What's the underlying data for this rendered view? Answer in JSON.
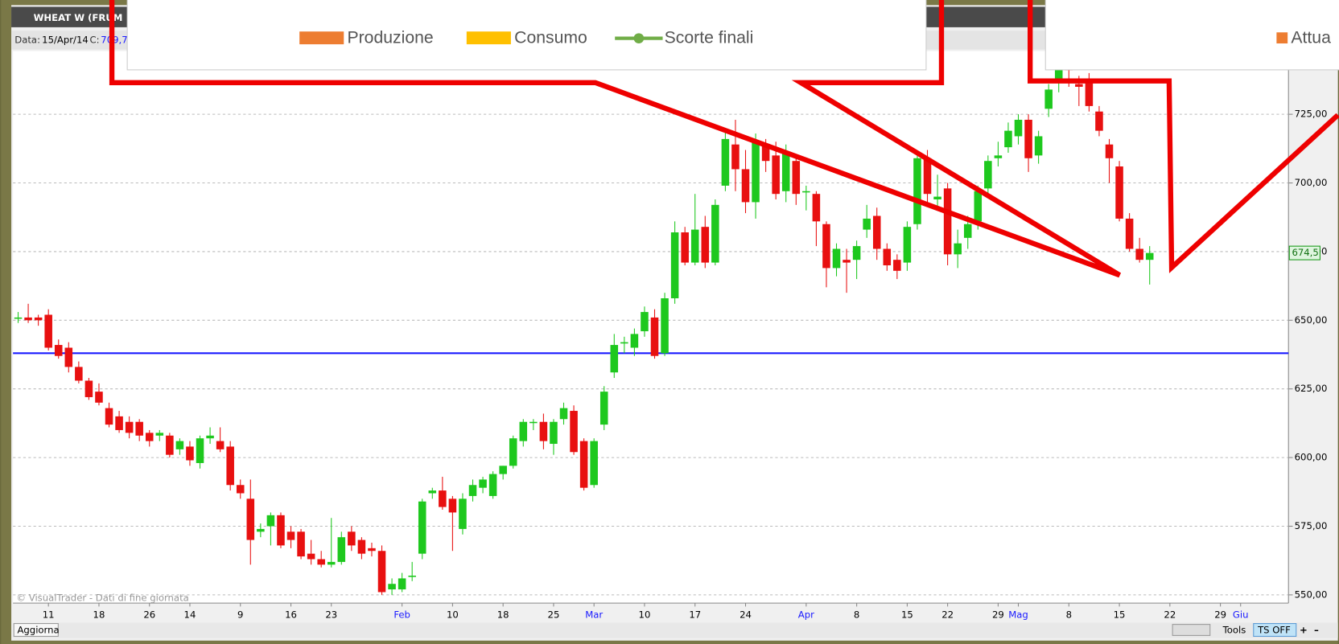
{
  "window": {
    "title": "WHEAT W (FRUM",
    "info": {
      "date_label": "Data:",
      "date": "15/Apr/14",
      "close_label": "C:",
      "close": "709,7"
    }
  },
  "legend_popup": {
    "items": [
      "Produzione",
      "Consumo",
      "Scorte finali"
    ],
    "right_item": "Attua"
  },
  "footer": {
    "update": "Aggiorna",
    "tools": "Tools",
    "ts": "TS OFF",
    "plus": "+",
    "minus": "–",
    "copyright": "© VisualTrader - Dati di fine giornata"
  },
  "chart_data": {
    "type": "candlestick",
    "up_color": "#1ec81e",
    "down_color": "#e81010",
    "grid": true,
    "ylim": [
      547,
      748
    ],
    "yticks": [
      {
        "value": 550,
        "label": "550,00"
      },
      {
        "value": 575,
        "label": "575,00"
      },
      {
        "value": 600,
        "label": "600,00"
      },
      {
        "value": 625,
        "label": "625,00"
      },
      {
        "value": 650,
        "label": "650,00"
      },
      {
        "value": 675,
        "label": "675,00"
      },
      {
        "value": 700,
        "label": "700,00"
      },
      {
        "value": 725,
        "label": "725,00"
      }
    ],
    "hline": {
      "value": 638,
      "color": "#1a1aff"
    },
    "last_price": {
      "value": 674.5,
      "label": "674,5"
    },
    "categories": [
      null,
      null,
      null,
      "11",
      null,
      null,
      null,
      null,
      "18",
      null,
      null,
      null,
      null,
      "26",
      null,
      null,
      null,
      "14",
      null,
      null,
      null,
      null,
      "9",
      null,
      null,
      null,
      null,
      "16",
      null,
      null,
      null,
      "23",
      null,
      null,
      null,
      null,
      null,
      null,
      "Feb",
      null,
      null,
      null,
      null,
      "10",
      null,
      null,
      null,
      null,
      "18",
      null,
      null,
      null,
      null,
      "25",
      null,
      null,
      null,
      "Mar",
      null,
      null,
      null,
      null,
      "10",
      null,
      null,
      null,
      null,
      "17",
      null,
      null,
      null,
      null,
      "24",
      null,
      null,
      null,
      null,
      null,
      "Apr",
      null,
      null,
      null,
      null,
      "8",
      null,
      null,
      null,
      null,
      "15",
      null,
      null,
      null,
      "22",
      null,
      null,
      null,
      null,
      "29",
      null,
      "Mag",
      null,
      null,
      null,
      null,
      "8",
      null,
      null,
      null,
      null,
      "15",
      null,
      null,
      null,
      null,
      "22",
      null,
      null,
      null,
      null,
      "29",
      null,
      "Giu",
      null
    ],
    "ohlc": [
      [
        651,
        653,
        649,
        651
      ],
      [
        651,
        656,
        649,
        650
      ],
      [
        651,
        652,
        648,
        650
      ],
      [
        652,
        654,
        639,
        640
      ],
      [
        641,
        643,
        636,
        637
      ],
      [
        640,
        642,
        631,
        633
      ],
      [
        633,
        635,
        627,
        628
      ],
      [
        628,
        629,
        621,
        622
      ],
      [
        624,
        627,
        619,
        620
      ],
      [
        618,
        620,
        611,
        612
      ],
      [
        615,
        617,
        609,
        610
      ],
      [
        613,
        615,
        607,
        609
      ],
      [
        613,
        614,
        606,
        608
      ],
      [
        609,
        610,
        604,
        606
      ],
      [
        608,
        610,
        606,
        609
      ],
      [
        608,
        609,
        600,
        601
      ],
      [
        603,
        607,
        601,
        606
      ],
      [
        604,
        606,
        597,
        599
      ],
      [
        598,
        608,
        596,
        607
      ],
      [
        607,
        611,
        605,
        608
      ],
      [
        606,
        611,
        602,
        603
      ],
      [
        604,
        606,
        588,
        590
      ],
      [
        590,
        592,
        585,
        587
      ],
      [
        585,
        592,
        561,
        570
      ],
      [
        573,
        576,
        571,
        574
      ],
      [
        575,
        580,
        568,
        579
      ],
      [
        579,
        580,
        567,
        568
      ],
      [
        573,
        575,
        567,
        570
      ],
      [
        573,
        574,
        563,
        564
      ],
      [
        565,
        570,
        561,
        563
      ],
      [
        563,
        566,
        560,
        561
      ],
      [
        561,
        578,
        560,
        562
      ],
      [
        562,
        573,
        561,
        571
      ],
      [
        573,
        575,
        566,
        568
      ],
      [
        570,
        571,
        563,
        565
      ],
      [
        567,
        569,
        564,
        566
      ],
      [
        566,
        568,
        550,
        551
      ],
      [
        552,
        556,
        550,
        554
      ],
      [
        552,
        558,
        551,
        556
      ],
      [
        557,
        562,
        555,
        557
      ],
      [
        565,
        585,
        563,
        584
      ],
      [
        587,
        589,
        585,
        588
      ],
      [
        588,
        593,
        581,
        582
      ],
      [
        585,
        586,
        566,
        580
      ],
      [
        574,
        587,
        572,
        585
      ],
      [
        586,
        592,
        584,
        590
      ],
      [
        589,
        593,
        587,
        592
      ],
      [
        586,
        595,
        585,
        594
      ],
      [
        594,
        597,
        592,
        597
      ],
      [
        597,
        608,
        596,
        607
      ],
      [
        606,
        614,
        604,
        613
      ],
      [
        613,
        614,
        610,
        613
      ],
      [
        613,
        616,
        603,
        606
      ],
      [
        605,
        614,
        601,
        613
      ],
      [
        614,
        620,
        612,
        618
      ],
      [
        617,
        619,
        601,
        602
      ],
      [
        606,
        607,
        588,
        589
      ],
      [
        590,
        607,
        589,
        606
      ],
      [
        612,
        626,
        610,
        624
      ],
      [
        631,
        645,
        629,
        641
      ],
      [
        642,
        644,
        638,
        642
      ],
      [
        640,
        647,
        637,
        645
      ],
      [
        646,
        655,
        644,
        653
      ],
      [
        651,
        654,
        636,
        637
      ],
      [
        638,
        660,
        637,
        658
      ],
      [
        658,
        686,
        656,
        682
      ],
      [
        682,
        684,
        670,
        671
      ],
      [
        671,
        696,
        670,
        683
      ],
      [
        684,
        688,
        669,
        671
      ],
      [
        671,
        694,
        670,
        692
      ],
      [
        699,
        719,
        697,
        716
      ],
      [
        714,
        723,
        697,
        705
      ],
      [
        705,
        712,
        689,
        693
      ],
      [
        693,
        718,
        687,
        715
      ],
      [
        714,
        716,
        704,
        708
      ],
      [
        710,
        715,
        694,
        696
      ],
      [
        697,
        714,
        693,
        711
      ],
      [
        708,
        710,
        692,
        696
      ],
      [
        697,
        699,
        690,
        697
      ],
      [
        696,
        697,
        677,
        686
      ],
      [
        685,
        686,
        662,
        669
      ],
      [
        669,
        678,
        666,
        676
      ],
      [
        672,
        676,
        660,
        671
      ],
      [
        672,
        679,
        665,
        677
      ],
      [
        683,
        692,
        680,
        687
      ],
      [
        688,
        691,
        672,
        676
      ],
      [
        676,
        678,
        668,
        670
      ],
      [
        672,
        674,
        665,
        668
      ],
      [
        671,
        686,
        668,
        684
      ],
      [
        685,
        711,
        683,
        709
      ],
      [
        709,
        712,
        693,
        696
      ],
      [
        694,
        703,
        691,
        695
      ],
      [
        698,
        700,
        670,
        674
      ],
      [
        674,
        683,
        669,
        678
      ],
      [
        680,
        688,
        676,
        685
      ],
      [
        686,
        699,
        683,
        697
      ],
      [
        698,
        710,
        696,
        708
      ],
      [
        709,
        715,
        706,
        710
      ],
      [
        713,
        722,
        711,
        719
      ],
      [
        717,
        725,
        714,
        723
      ],
      [
        723,
        725,
        704,
        709
      ],
      [
        710,
        719,
        707,
        717
      ],
      [
        727,
        736,
        724,
        734
      ],
      [
        737,
        746,
        733,
        742
      ],
      [
        742,
        746,
        735,
        741
      ],
      [
        736,
        739,
        728,
        735
      ],
      [
        738,
        740,
        726,
        728
      ],
      [
        726,
        728,
        717,
        719
      ],
      [
        714,
        716,
        700,
        709
      ],
      [
        706,
        708,
        686,
        687
      ],
      [
        687,
        689,
        675,
        676
      ],
      [
        676,
        680,
        671,
        672
      ],
      [
        672,
        677,
        663,
        674.5
      ],
      null,
      null,
      null,
      null,
      null,
      null,
      null,
      null,
      null,
      null
    ]
  }
}
